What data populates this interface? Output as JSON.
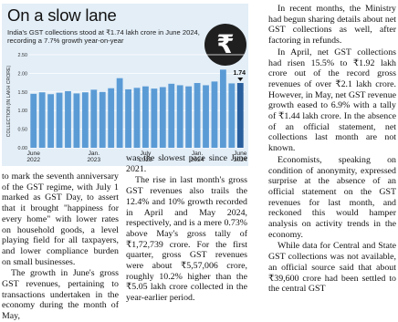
{
  "graphic": {
    "title": "On a slow lane",
    "subtitle": "India's GST collections stood at ₹1.74 lakh crore in June 2024, recording a 7.7% growth year-on-year",
    "icon": "rupee-coin-icon"
  },
  "chart_data": {
    "type": "bar",
    "ylabel": "COLLECTION (IN LAKH CRORE)",
    "ylim": [
      0,
      2.5
    ],
    "yticks": [
      "0.00",
      "0.50",
      "1.00",
      "1.50",
      "2.00",
      "2.50"
    ],
    "categories": [
      "Jun 2022",
      "Jul 2022",
      "Aug 2022",
      "Sep 2022",
      "Oct 2022",
      "Nov 2022",
      "Dec 2022",
      "Jan 2023",
      "Feb 2023",
      "Mar 2023",
      "Apr 2023",
      "May 2023",
      "Jun 2023",
      "Jul 2023",
      "Aug 2023",
      "Sep 2023",
      "Oct 2023",
      "Nov 2023",
      "Dec 2023",
      "Jan 2024",
      "Feb 2024",
      "Mar 2024",
      "Apr 2024",
      "May 2024",
      "Jun 2024"
    ],
    "values": [
      1.45,
      1.49,
      1.44,
      1.48,
      1.52,
      1.46,
      1.49,
      1.56,
      1.5,
      1.6,
      1.87,
      1.57,
      1.61,
      1.65,
      1.59,
      1.63,
      1.72,
      1.68,
      1.65,
      1.74,
      1.68,
      1.78,
      2.1,
      1.73,
      1.74
    ],
    "xtick_labels": [
      {
        "index": 0,
        "label": "June\n2022"
      },
      {
        "index": 7,
        "label": "Jan.\n2023"
      },
      {
        "index": 13,
        "label": "July\n2023"
      },
      {
        "index": 19,
        "label": "Jan.\n2024"
      },
      {
        "index": 24,
        "label": "June\n2024"
      }
    ],
    "data_labels": [
      {
        "index": 24,
        "label": "1.74"
      }
    ],
    "highlight_index": 24,
    "colors": {
      "bar": "#5b9bd5",
      "highlight": "#2a5f9e",
      "grid": "#ffffff",
      "panel": "#e3eef7"
    },
    "grid": true
  },
  "article": {
    "col1": [
      "to mark the seventh anniversary of the GST regime, with July 1 marked as GST Day, to assert that it brought \"happiness for every home\" with lower rates on household goods, a level playing field for all taxpayers, and lower compliance burden on small businesses.",
      "The growth in June's gross GST revenues, pertaining to transactions undertaken in the economy during the month of May,"
    ],
    "col2": [
      "was the slowest pace since June 2021.",
      "The rise in last month's gross GST revenues also trails the 12.4% and 10% growth recorded in April and May 2024, respectively, and is a mere 0.73% above May's gross tally of ₹1,72,739 crore. For the first quarter, gross GST revenues were about ₹5,57,006 crore, roughly 10.2% higher than the ₹5.05 lakh crore collected in the year-earlier period."
    ],
    "col3": [
      "In recent months, the Ministry had begun sharing details about net GST collections as well, after factoring in refunds.",
      "In April, net GST collections had risen 15.5% to ₹1.92 lakh crore out of the record gross revenues of over ₹2.1 lakh crore. However, in May, net GST revenue growth eased to 6.9% with a tally of ₹1.44 lakh crore. In the absence of an official statement, net collections last month are not known.",
      "Economists, speaking on condition of anonymity, expressed surprise at the absence of an official statement on the GST revenues for last month, and reckoned this would hamper analysis on activity trends in the economy.",
      "While data for Central and State GST collections was not available, an official source said that about ₹39,600 crore had been settled to the central GST"
    ]
  }
}
